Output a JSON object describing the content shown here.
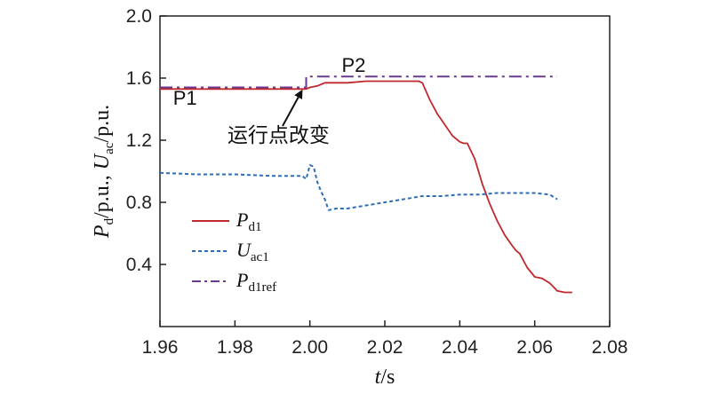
{
  "chart_data": {
    "type": "line",
    "xlabel": {
      "var": "t",
      "unit": "/s"
    },
    "ylabel": {
      "p_var": "P",
      "p_sub": "d",
      "p_unit": "/p.u., ",
      "u_var": "U",
      "u_sub": "ac",
      "u_unit": "/p.u."
    },
    "xlim": [
      1.96,
      2.08
    ],
    "ylim": [
      0.0,
      2.0
    ],
    "xticks": [
      "1.96",
      "1.98",
      "2.00",
      "2.02",
      "2.04",
      "2.06",
      "2.08"
    ],
    "yticks": [
      "0.4",
      "0.8",
      "1.2",
      "1.6",
      "2.0"
    ],
    "grid": false,
    "legend_position": "lower-left",
    "series": [
      {
        "name": "Pd1",
        "name_main": "P",
        "name_sub": "d1",
        "color": "#c0282d",
        "style": "solid",
        "x": [
          1.96,
          1.999,
          2.0,
          2.002,
          2.004,
          2.006,
          2.01,
          2.015,
          2.02,
          2.025,
          2.029,
          2.03,
          2.032,
          2.034,
          2.036,
          2.038,
          2.04,
          2.041,
          2.042,
          2.044,
          2.046,
          2.048,
          2.05,
          2.052,
          2.054,
          2.055,
          2.056,
          2.058,
          2.06,
          2.062,
          2.064,
          2.066,
          2.068,
          2.07
        ],
        "y": [
          1.53,
          1.53,
          1.54,
          1.55,
          1.57,
          1.57,
          1.57,
          1.58,
          1.58,
          1.58,
          1.58,
          1.57,
          1.46,
          1.37,
          1.3,
          1.23,
          1.19,
          1.18,
          1.18,
          1.08,
          0.92,
          0.79,
          0.68,
          0.59,
          0.52,
          0.49,
          0.47,
          0.38,
          0.32,
          0.31,
          0.28,
          0.23,
          0.22,
          0.22
        ]
      },
      {
        "name": "Uac1",
        "name_main": "U",
        "name_sub": "ac1",
        "color": "#2d6db5",
        "style": "dashed",
        "x": [
          1.96,
          1.97,
          1.98,
          1.99,
          1.998,
          1.999,
          2.0,
          2.001,
          2.002,
          2.003,
          2.004,
          2.005,
          2.007,
          2.01,
          2.015,
          2.02,
          2.025,
          2.03,
          2.035,
          2.04,
          2.045,
          2.05,
          2.055,
          2.06,
          2.064,
          2.066
        ],
        "y": [
          0.99,
          0.98,
          0.98,
          0.97,
          0.97,
          0.95,
          1.04,
          1.03,
          0.93,
          0.87,
          0.82,
          0.75,
          0.76,
          0.76,
          0.78,
          0.8,
          0.82,
          0.84,
          0.84,
          0.85,
          0.85,
          0.86,
          0.86,
          0.86,
          0.85,
          0.82
        ]
      },
      {
        "name": "Pd1ref",
        "name_main": "P",
        "name_sub": "d1ref",
        "color": "#6b3a8c",
        "style": "dashdot",
        "x": [
          1.96,
          1.999,
          1.999,
          2.066
        ],
        "y": [
          1.54,
          1.54,
          1.61,
          1.61
        ]
      }
    ],
    "annotations": [
      {
        "text": "P1",
        "x": 1.9635,
        "y": 1.43
      },
      {
        "text": "P2",
        "x": 2.0085,
        "y": 1.64
      },
      {
        "text": "运行点改变",
        "x": 1.978,
        "y": 1.19,
        "arrow_to": [
          1.999,
          1.545
        ]
      }
    ]
  }
}
